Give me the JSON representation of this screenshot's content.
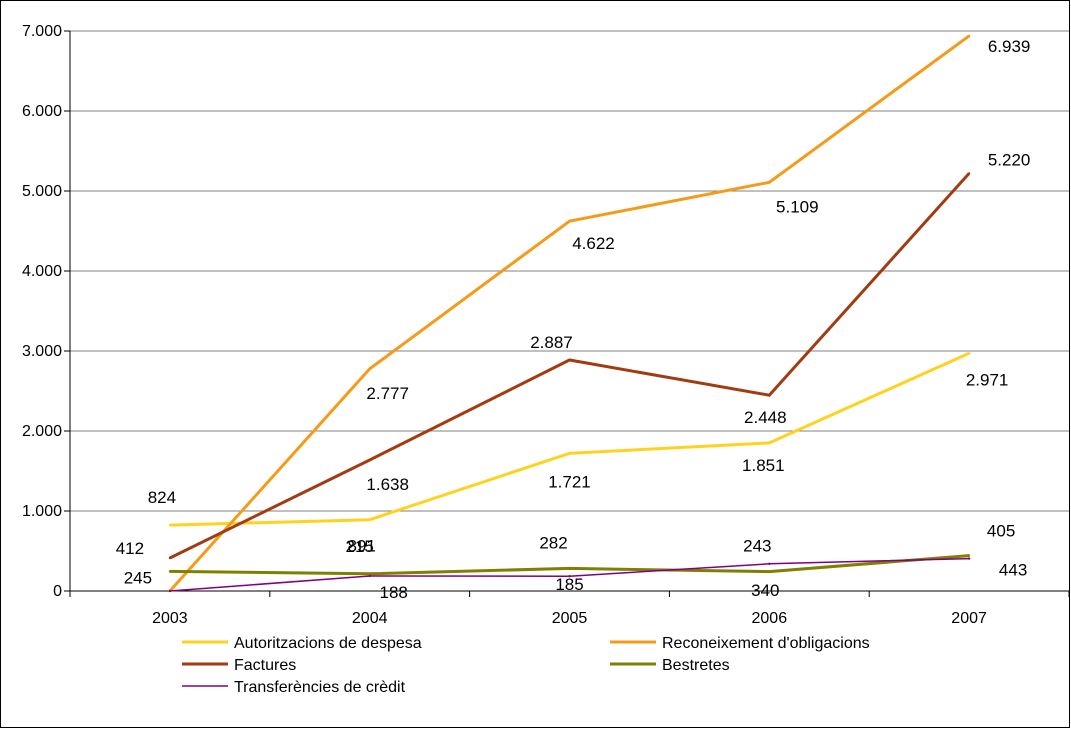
{
  "chart_data": {
    "type": "line",
    "title": "",
    "xlabel": "",
    "ylabel": "",
    "x": [
      "2003",
      "2004",
      "2005",
      "2006",
      "2007"
    ],
    "ylim": [
      0,
      7000
    ],
    "yticks": [
      0,
      1000,
      2000,
      3000,
      4000,
      5000,
      6000,
      7000
    ],
    "ytick_labels": [
      "0",
      "1.000",
      "2.000",
      "3.000",
      "4.000",
      "5.000",
      "6.000",
      "7.000"
    ],
    "grid": "horizontal",
    "legend_position": "bottom",
    "series": [
      {
        "name": "Autoritzacions de despesa",
        "color": "#FFD21F",
        "values": [
          824,
          891,
          1721,
          1851,
          2971
        ],
        "labels": [
          "824",
          "891",
          "1.721",
          "1.851",
          "2.971"
        ]
      },
      {
        "name": "Reconeixement d'obligacions",
        "color": "#F59B1A",
        "values": [
          0,
          2777,
          4622,
          5109,
          6939
        ],
        "labels": [
          "",
          "2.777",
          "4.622",
          "5.109",
          "6.939"
        ]
      },
      {
        "name": "Factures",
        "color": "#A23B12",
        "values": [
          412,
          1638,
          2887,
          2448,
          5220
        ],
        "labels": [
          "412",
          "1.638",
          "2.887",
          "2.448",
          "5.220"
        ]
      },
      {
        "name": "Bestretes",
        "color": "#808000",
        "values": [
          245,
          215,
          282,
          243,
          443
        ],
        "labels": [
          "245",
          "215",
          "282",
          "243",
          "443"
        ]
      },
      {
        "name": "Transferències de crèdit",
        "color": "#800080",
        "values": [
          0,
          188,
          185,
          340,
          405
        ],
        "labels": [
          "",
          "188",
          "185",
          "340",
          "405"
        ]
      }
    ]
  }
}
